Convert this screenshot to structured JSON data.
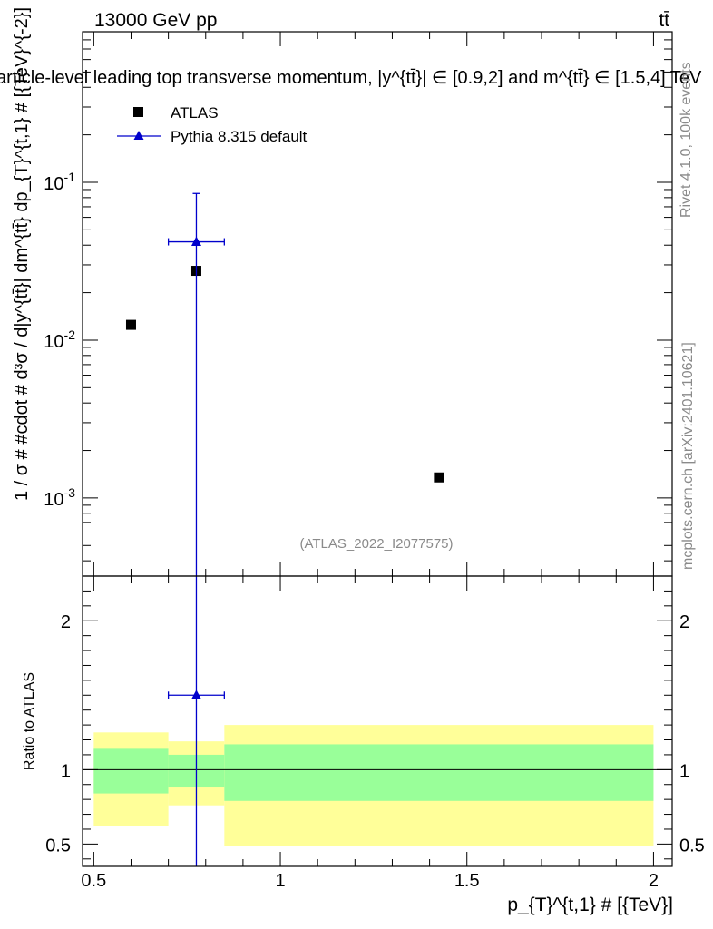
{
  "header": {
    "left": "13000 GeV pp",
    "right": "tt̄",
    "title": "article-level leading top transverse momentum, |y^{tt̄}| ∈ [0.9,2] and m^{tt̄} ∈ [1.5,4] TeV"
  },
  "side_labels": {
    "rivet": "Rivet 4.1.0,  100k events",
    "mcplots": "mcplots.cern.ch [arXiv:2401.10621]"
  },
  "watermark": "(ATLAS_2022_I2077575)",
  "legend": {
    "items": [
      {
        "label": "ATLAS",
        "marker": "square",
        "color": "#000000"
      },
      {
        "label": "Pythia 8.315 default",
        "marker": "triangle",
        "color": "#0000cc"
      }
    ]
  },
  "chart_data": [
    {
      "type": "scatter",
      "panel": "main",
      "ylabel": "1 / σ # #cdot # d³σ / d|y^{tt̄}| dm^{tt̄} dp_{T}^{t,1} # [{TeV}^{-2}]",
      "yscale": "log",
      "xlim": [
        0.47,
        2.05
      ],
      "ylim": [
        0.00032,
        0.9
      ],
      "ytick_labels": [
        "10^{-3}",
        "10^{-2}",
        "10^{-1}"
      ],
      "series": [
        {
          "name": "ATLAS",
          "color": "#000000",
          "points": [
            {
              "x": 0.6,
              "y": 0.0125
            },
            {
              "x": 0.775,
              "y": 0.0275
            },
            {
              "x": 1.425,
              "y": 0.00135
            }
          ]
        },
        {
          "name": "Pythia 8.315 default",
          "color": "#0000cc",
          "points": [
            {
              "x": 0.775,
              "y": 0.042,
              "xlow": 0.7,
              "xhigh": 0.85,
              "ylow": 1e-05,
              "yhigh": 0.085
            }
          ]
        }
      ]
    },
    {
      "type": "area",
      "panel": "ratio",
      "xlabel": "p_{T}^{t,1} # [{TeV}]",
      "ylabel": "Ratio to ATLAS",
      "xlim": [
        0.47,
        2.05
      ],
      "ylim": [
        0.35,
        2.3
      ],
      "xtick_labels": [
        "0.5",
        "1",
        "1.5",
        "2"
      ],
      "ytick_labels": [
        "0.5",
        "1",
        "2"
      ],
      "bands": [
        {
          "xlow": 0.5,
          "xhigh": 0.7,
          "inner": [
            0.84,
            1.14
          ],
          "outer": [
            0.62,
            1.25
          ]
        },
        {
          "xlow": 0.7,
          "xhigh": 0.85,
          "inner": [
            0.88,
            1.1
          ],
          "outer": [
            0.76,
            1.19
          ]
        },
        {
          "xlow": 0.85,
          "xhigh": 2.0,
          "inner": [
            0.79,
            1.17
          ],
          "outer": [
            0.49,
            1.3
          ]
        }
      ],
      "band_colors": {
        "inner": "#99ff99",
        "outer": "#ffff99"
      },
      "series": [
        {
          "name": "Pythia 8.315 default",
          "color": "#0000cc",
          "points": [
            {
              "x": 0.775,
              "y": 1.5,
              "xlow": 0.7,
              "xhigh": 0.85,
              "ylow": 0.0,
              "yhigh": 2.3
            }
          ]
        }
      ]
    }
  ]
}
